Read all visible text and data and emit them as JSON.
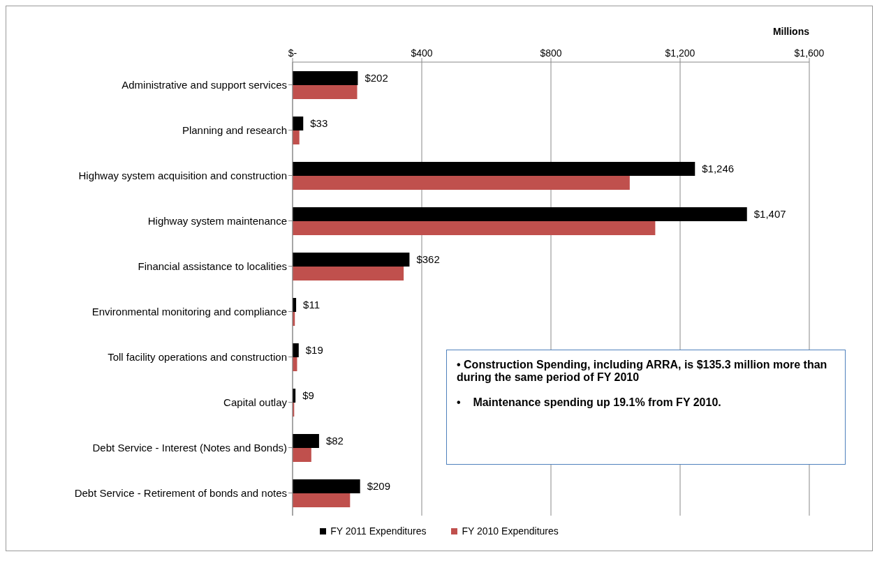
{
  "chart_data": {
    "type": "bar",
    "orientation": "horizontal",
    "xlabel": "Millions",
    "categories": [
      "Administrative and support services",
      "Planning and research",
      "Highway system acquisition and construction",
      "Highway system maintenance",
      "Financial assistance to localities",
      "Environmental monitoring and compliance",
      "Toll facility operations and construction",
      "Capital outlay",
      "Debt Service - Interest (Notes and Bonds)",
      "Debt Service - Retirement of bonds and notes"
    ],
    "series": [
      {
        "name": "FY 2011 Expenditures",
        "color": "#000000",
        "values": [
          202,
          33,
          1246,
          1407,
          362,
          11,
          19,
          9,
          82,
          209
        ],
        "value_labels": [
          "$202",
          "$33",
          "$1,246",
          "$1,407",
          "$362",
          "$11",
          "$19",
          "$9",
          "$82",
          "$209"
        ]
      },
      {
        "name": "FY 2010 Expenditures",
        "color": "#c0504d",
        "values": [
          200,
          21,
          1044,
          1123,
          344,
          7,
          14,
          5,
          58,
          178
        ]
      }
    ],
    "xlim": [
      0,
      1600
    ],
    "xticks": [
      {
        "value": 0,
        "label": "$-"
      },
      {
        "value": 400,
        "label": "$400"
      },
      {
        "value": 800,
        "label": "$800"
      },
      {
        "value": 1200,
        "label": "$1,200"
      },
      {
        "value": 1600,
        "label": "$1,600"
      }
    ],
    "grid": "x",
    "legend": "bottom",
    "annotations": [
      "• Construction Spending, including ARRA, is $135.3 million more than during the same period of FY 2010",
      "•    Maintenance spending up 19.1% from FY 2010."
    ]
  }
}
